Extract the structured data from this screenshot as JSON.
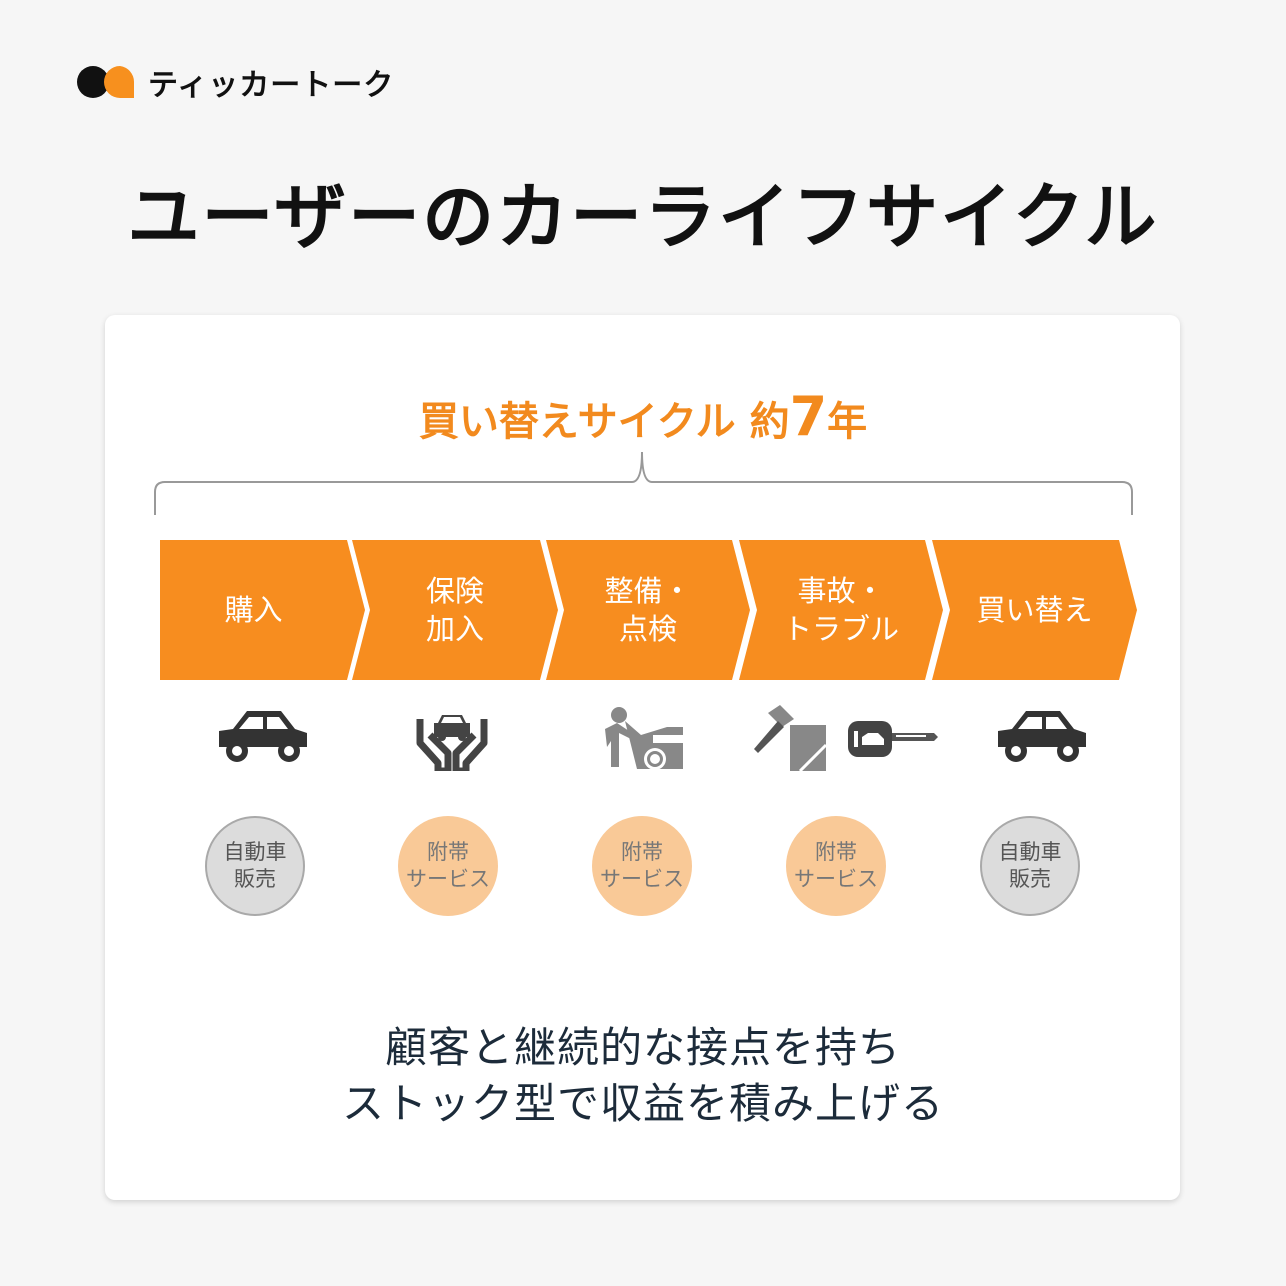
{
  "brand": {
    "name": "ティッカートーク",
    "colors": {
      "black": "#111111",
      "orange": "#f7901e"
    }
  },
  "title": "ユーザーのカーライフサイクル",
  "cycle": {
    "prefix": "買い替えサイクル 約",
    "number": "7",
    "suffix": "年"
  },
  "steps": [
    {
      "label": "購入",
      "icon": "car-icon",
      "service": "自動車\n販売",
      "service_type": "core"
    },
    {
      "label": "保険\n加入",
      "icon": "hands-protecting-car-icon",
      "service": "附帯\nサービス",
      "service_type": "ancillary"
    },
    {
      "label": "整備・\n点検",
      "icon": "mechanic-repairing-car-icon",
      "service": "附帯\nサービス",
      "service_type": "ancillary"
    },
    {
      "label": "事故・\nトラブル",
      "icon": "hammer-glass-and-car-key-icon",
      "service": "附帯\nサービス",
      "service_type": "ancillary"
    },
    {
      "label": "買い替え",
      "icon": "car-icon",
      "service": "自動車\n販売",
      "service_type": "core"
    }
  ],
  "bottom": {
    "line1": "顧客と継続的な接点を持ち",
    "line2": "ストック型で収益を積み上げる"
  },
  "colors": {
    "chevron": "#f78d1f",
    "ancillary": "#f9c997",
    "core": "#dcdcdc",
    "accent_text": "#f28a1e"
  }
}
